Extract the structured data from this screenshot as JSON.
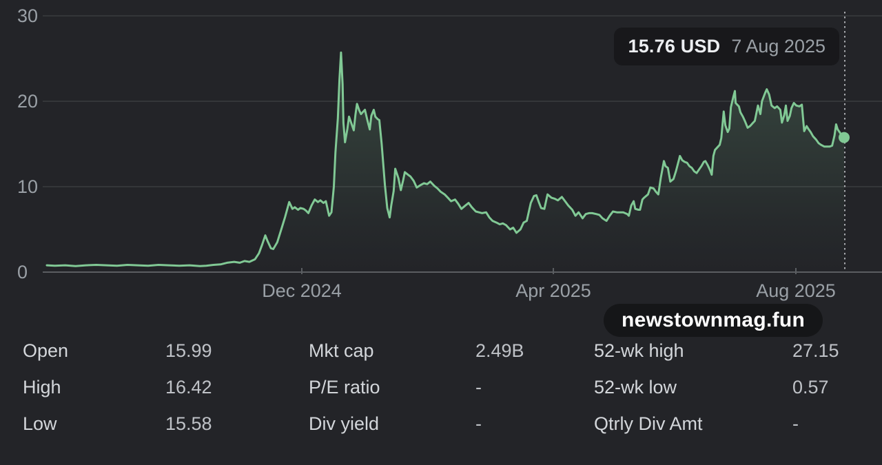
{
  "tooltip": {
    "price": "15.76 USD",
    "date": "7 Aug 2025"
  },
  "watermark": "newstownmag.fun",
  "chart_data": {
    "type": "area",
    "title": "",
    "xlabel": "",
    "ylabel": "",
    "currency": "USD",
    "ylim": [
      0,
      30
    ],
    "y_ticks": [
      0,
      10,
      20,
      30
    ],
    "x_ticks": [
      {
        "label": "Dec 2024",
        "f": 0.3198
      },
      {
        "label": "Apr 2025",
        "f": 0.6353
      },
      {
        "label": "Aug 2025",
        "f": 0.9395
      }
    ],
    "x_range": [
      "Aug 2024",
      "7 Aug 2025"
    ],
    "grid": true,
    "legend": "none",
    "line_color": "#81c995",
    "axis_text_color": "#9aa0a6",
    "last_point": {
      "date": "7 Aug 2025",
      "value": 15.76
    },
    "points": [
      [
        0.0,
        0.8
      ],
      [
        0.01,
        0.75
      ],
      [
        0.023,
        0.8
      ],
      [
        0.036,
        0.7
      ],
      [
        0.049,
        0.8
      ],
      [
        0.062,
        0.85
      ],
      [
        0.075,
        0.8
      ],
      [
        0.088,
        0.75
      ],
      [
        0.101,
        0.85
      ],
      [
        0.114,
        0.8
      ],
      [
        0.127,
        0.75
      ],
      [
        0.14,
        0.85
      ],
      [
        0.153,
        0.8
      ],
      [
        0.166,
        0.75
      ],
      [
        0.179,
        0.8
      ],
      [
        0.192,
        0.7
      ],
      [
        0.2,
        0.75
      ],
      [
        0.209,
        0.85
      ],
      [
        0.218,
        0.9
      ],
      [
        0.226,
        1.1
      ],
      [
        0.235,
        1.2
      ],
      [
        0.242,
        1.1
      ],
      [
        0.248,
        1.3
      ],
      [
        0.254,
        1.2
      ],
      [
        0.261,
        1.5
      ],
      [
        0.266,
        2.2
      ],
      [
        0.27,
        3.2
      ],
      [
        0.274,
        4.3
      ],
      [
        0.277,
        3.6
      ],
      [
        0.281,
        2.8
      ],
      [
        0.284,
        2.7
      ],
      [
        0.289,
        3.5
      ],
      [
        0.294,
        5.0
      ],
      [
        0.299,
        6.5
      ],
      [
        0.304,
        8.2
      ],
      [
        0.308,
        7.4
      ],
      [
        0.311,
        7.6
      ],
      [
        0.315,
        7.3
      ],
      [
        0.318,
        7.5
      ],
      [
        0.322,
        7.4
      ],
      [
        0.325,
        7.2
      ],
      [
        0.328,
        6.9
      ],
      [
        0.332,
        7.8
      ],
      [
        0.336,
        8.5
      ],
      [
        0.34,
        8.2
      ],
      [
        0.343,
        8.4
      ],
      [
        0.347,
        8.1
      ],
      [
        0.35,
        8.3
      ],
      [
        0.354,
        6.6
      ],
      [
        0.357,
        7.0
      ],
      [
        0.36,
        10.0
      ],
      [
        0.362,
        14.0
      ],
      [
        0.365,
        18.0
      ],
      [
        0.367,
        22.5
      ],
      [
        0.369,
        25.7
      ],
      [
        0.371,
        22.0
      ],
      [
        0.372,
        17.5
      ],
      [
        0.374,
        15.2
      ],
      [
        0.377,
        16.8
      ],
      [
        0.379,
        18.2
      ],
      [
        0.382,
        17.4
      ],
      [
        0.385,
        16.6
      ],
      [
        0.387,
        18.4
      ],
      [
        0.389,
        19.7
      ],
      [
        0.392,
        18.9
      ],
      [
        0.394,
        18.5
      ],
      [
        0.397,
        18.8
      ],
      [
        0.399,
        19.0
      ],
      [
        0.402,
        17.8
      ],
      [
        0.405,
        16.7
      ],
      [
        0.407,
        18.3
      ],
      [
        0.41,
        19.0
      ],
      [
        0.412,
        18.2
      ],
      [
        0.415,
        17.9
      ],
      [
        0.417,
        17.8
      ],
      [
        0.42,
        15.0
      ],
      [
        0.424,
        10.2
      ],
      [
        0.427,
        7.5
      ],
      [
        0.43,
        6.4
      ],
      [
        0.432,
        7.8
      ],
      [
        0.435,
        9.5
      ],
      [
        0.437,
        12.1
      ],
      [
        0.441,
        11.0
      ],
      [
        0.444,
        9.6
      ],
      [
        0.447,
        10.8
      ],
      [
        0.449,
        11.7
      ],
      [
        0.453,
        11.4
      ],
      [
        0.456,
        11.2
      ],
      [
        0.46,
        10.7
      ],
      [
        0.464,
        9.9
      ],
      [
        0.469,
        10.2
      ],
      [
        0.473,
        10.4
      ],
      [
        0.477,
        10.3
      ],
      [
        0.481,
        10.6
      ],
      [
        0.486,
        10.1
      ],
      [
        0.49,
        9.8
      ],
      [
        0.494,
        9.4
      ],
      [
        0.499,
        9.1
      ],
      [
        0.503,
        8.7
      ],
      [
        0.507,
        8.3
      ],
      [
        0.512,
        8.5
      ],
      [
        0.516,
        8.0
      ],
      [
        0.52,
        7.4
      ],
      [
        0.525,
        7.8
      ],
      [
        0.529,
        8.1
      ],
      [
        0.533,
        7.6
      ],
      [
        0.538,
        7.1
      ],
      [
        0.542,
        7.0
      ],
      [
        0.546,
        6.9
      ],
      [
        0.551,
        7.0
      ],
      [
        0.555,
        6.4
      ],
      [
        0.559,
        6.0
      ],
      [
        0.564,
        5.8
      ],
      [
        0.568,
        5.6
      ],
      [
        0.572,
        5.7
      ],
      [
        0.576,
        5.5
      ],
      [
        0.581,
        5.0
      ],
      [
        0.585,
        5.2
      ],
      [
        0.589,
        4.6
      ],
      [
        0.594,
        5.0
      ],
      [
        0.598,
        5.8
      ],
      [
        0.602,
        6.0
      ],
      [
        0.607,
        8.1
      ],
      [
        0.611,
        8.9
      ],
      [
        0.614,
        9.0
      ],
      [
        0.617,
        8.2
      ],
      [
        0.62,
        7.5
      ],
      [
        0.624,
        7.4
      ],
      [
        0.628,
        9.1
      ],
      [
        0.633,
        8.7
      ],
      [
        0.637,
        8.6
      ],
      [
        0.641,
        8.4
      ],
      [
        0.646,
        8.8
      ],
      [
        0.65,
        8.3
      ],
      [
        0.654,
        7.8
      ],
      [
        0.659,
        7.3
      ],
      [
        0.663,
        6.6
      ],
      [
        0.667,
        7.0
      ],
      [
        0.672,
        6.3
      ],
      [
        0.676,
        6.8
      ],
      [
        0.68,
        6.9
      ],
      [
        0.684,
        6.9
      ],
      [
        0.689,
        6.8
      ],
      [
        0.693,
        6.7
      ],
      [
        0.697,
        6.3
      ],
      [
        0.702,
        6.0
      ],
      [
        0.706,
        6.6
      ],
      [
        0.71,
        7.1
      ],
      [
        0.715,
        7.0
      ],
      [
        0.719,
        7.0
      ],
      [
        0.723,
        7.0
      ],
      [
        0.728,
        6.8
      ],
      [
        0.73,
        6.6
      ],
      [
        0.733,
        7.8
      ],
      [
        0.736,
        8.3
      ],
      [
        0.738,
        7.4
      ],
      [
        0.742,
        7.3
      ],
      [
        0.744,
        7.3
      ],
      [
        0.747,
        8.5
      ],
      [
        0.749,
        8.7
      ],
      [
        0.754,
        9.1
      ],
      [
        0.757,
        9.9
      ],
      [
        0.761,
        9.8
      ],
      [
        0.764,
        9.4
      ],
      [
        0.767,
        9.1
      ],
      [
        0.77,
        11.0
      ],
      [
        0.774,
        13.0
      ],
      [
        0.776,
        12.4
      ],
      [
        0.779,
        12.2
      ],
      [
        0.782,
        10.6
      ],
      [
        0.786,
        10.9
      ],
      [
        0.789,
        11.8
      ],
      [
        0.793,
        13.2
      ],
      [
        0.794,
        13.6
      ],
      [
        0.797,
        13.1
      ],
      [
        0.8,
        12.9
      ],
      [
        0.803,
        12.8
      ],
      [
        0.806,
        12.4
      ],
      [
        0.809,
        12.2
      ],
      [
        0.812,
        11.8
      ],
      [
        0.815,
        11.6
      ],
      [
        0.818,
        12.0
      ],
      [
        0.821,
        12.4
      ],
      [
        0.824,
        12.9
      ],
      [
        0.826,
        13.0
      ],
      [
        0.829,
        12.5
      ],
      [
        0.832,
        11.9
      ],
      [
        0.834,
        11.4
      ],
      [
        0.836,
        13.6
      ],
      [
        0.838,
        14.3
      ],
      [
        0.842,
        14.7
      ],
      [
        0.844,
        14.9
      ],
      [
        0.846,
        15.7
      ],
      [
        0.849,
        18.8
      ],
      [
        0.851,
        17.2
      ],
      [
        0.854,
        16.4
      ],
      [
        0.856,
        16.8
      ],
      [
        0.858,
        19.3
      ],
      [
        0.861,
        20.5
      ],
      [
        0.863,
        21.2
      ],
      [
        0.864,
        19.8
      ],
      [
        0.868,
        19.4
      ],
      [
        0.87,
        18.7
      ],
      [
        0.873,
        18.2
      ],
      [
        0.876,
        17.6
      ],
      [
        0.879,
        16.9
      ],
      [
        0.882,
        17.1
      ],
      [
        0.885,
        17.4
      ],
      [
        0.888,
        17.7
      ],
      [
        0.89,
        18.6
      ],
      [
        0.892,
        19.5
      ],
      [
        0.895,
        18.5
      ],
      [
        0.897,
        20.0
      ],
      [
        0.901,
        21.0
      ],
      [
        0.903,
        21.4
      ],
      [
        0.906,
        20.8
      ],
      [
        0.909,
        19.5
      ],
      [
        0.913,
        19.2
      ],
      [
        0.916,
        19.4
      ],
      [
        0.92,
        19.0
      ],
      [
        0.922,
        17.5
      ],
      [
        0.925,
        18.4
      ],
      [
        0.927,
        19.5
      ],
      [
        0.929,
        17.7
      ],
      [
        0.932,
        18.3
      ],
      [
        0.934,
        19.2
      ],
      [
        0.937,
        19.8
      ],
      [
        0.94,
        19.5
      ],
      [
        0.944,
        19.4
      ],
      [
        0.947,
        19.6
      ],
      [
        0.95,
        16.5
      ],
      [
        0.953,
        17.1
      ],
      [
        0.955,
        16.8
      ],
      [
        0.958,
        16.4
      ],
      [
        0.961,
        15.9
      ],
      [
        0.965,
        15.5
      ],
      [
        0.968,
        15.1
      ],
      [
        0.971,
        14.9
      ],
      [
        0.975,
        14.7
      ],
      [
        0.978,
        14.7
      ],
      [
        0.982,
        14.7
      ],
      [
        0.985,
        14.8
      ],
      [
        0.988,
        16.0
      ],
      [
        0.99,
        17.3
      ],
      [
        0.992,
        16.7
      ],
      [
        0.995,
        16.3
      ],
      [
        0.997,
        16.0
      ],
      [
        1.0,
        15.76
      ]
    ]
  },
  "stats": {
    "columns": [
      {
        "rows": [
          {
            "label": "Open",
            "value": "15.99"
          },
          {
            "label": "High",
            "value": "16.42"
          },
          {
            "label": "Low",
            "value": "15.58"
          }
        ]
      },
      {
        "rows": [
          {
            "label": "Mkt cap",
            "value": "2.49B"
          },
          {
            "label": "P/E ratio",
            "value": "-"
          },
          {
            "label": "Div yield",
            "value": "-"
          }
        ]
      },
      {
        "rows": [
          {
            "label": "52-wk high",
            "value": "27.15"
          },
          {
            "label": "52-wk low",
            "value": "0.57"
          },
          {
            "label": "Qtrly Div Amt",
            "value": "-"
          }
        ]
      }
    ]
  }
}
